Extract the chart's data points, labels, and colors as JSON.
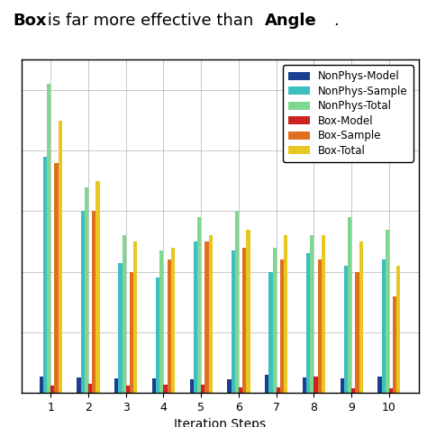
{
  "categories": [
    1,
    2,
    3,
    4,
    5,
    6,
    7,
    8,
    9,
    10
  ],
  "series": {
    "NonPhys-Model": {
      "color": "#1a3f8f",
      "values": [
        0.055,
        0.05,
        0.048,
        0.047,
        0.046,
        0.044,
        0.06,
        0.052,
        0.048,
        0.055
      ]
    },
    "NonPhys-Sample": {
      "color": "#3dbfbf",
      "values": [
        0.78,
        0.6,
        0.43,
        0.38,
        0.5,
        0.47,
        0.4,
        0.46,
        0.42,
        0.44
      ]
    },
    "NonPhys-Total": {
      "color": "#7dd890",
      "values": [
        1.02,
        0.68,
        0.52,
        0.47,
        0.58,
        0.6,
        0.48,
        0.52,
        0.58,
        0.54
      ]
    },
    "Box-Model": {
      "color": "#cc2222",
      "values": [
        0.025,
        0.03,
        0.025,
        0.028,
        0.028,
        0.018,
        0.018,
        0.055,
        0.015,
        0.015
      ]
    },
    "Box-Sample": {
      "color": "#e07020",
      "values": [
        0.76,
        0.6,
        0.4,
        0.44,
        0.5,
        0.48,
        0.44,
        0.44,
        0.4,
        0.32
      ]
    },
    "Box-Total": {
      "color": "#e8c820",
      "values": [
        0.9,
        0.7,
        0.5,
        0.48,
        0.52,
        0.54,
        0.52,
        0.52,
        0.5,
        0.42
      ]
    }
  },
  "xlabel": "Iteration Steps",
  "ylim": [
    0,
    1.1
  ],
  "bar_width": 0.1,
  "grid": true,
  "legend_fontsize": 8.5,
  "tick_fontsize": 9,
  "xlabel_fontsize": 10,
  "caption_line1": "Box",
  "caption_line2": " is far more effective than ",
  "caption_line3": "Angle",
  "caption_line4": ".",
  "fig_width": 4.74,
  "fig_height": 4.74,
  "dpi": 100
}
